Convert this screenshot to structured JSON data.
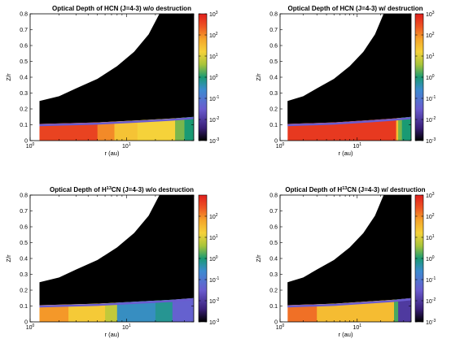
{
  "chart_data": [
    {
      "type": "heatmap",
      "title": "Optical Depth of HCN (J=4-3) w/o destruction",
      "xlabel": "r (au)",
      "ylabel": "Z/r",
      "xscale": "log",
      "xlim": [
        1,
        50
      ],
      "ylim": [
        0,
        0.8
      ],
      "yticks": [
        "0",
        "0.1",
        "0.2",
        "0.3",
        "0.4",
        "0.5",
        "0.6",
        "0.7",
        "0.8"
      ],
      "xticks": [
        "10^0",
        "10^1"
      ],
      "colorbar": {
        "scale": "log",
        "range": [
          0.001,
          1000
        ],
        "labels": [
          "10^3",
          "10^2",
          "10^1",
          "10^0",
          "10^-1",
          "10^-2",
          "10^-3"
        ]
      },
      "boundary": {
        "r": [
          1.25,
          2,
          3,
          5,
          8,
          12,
          17,
          22,
          22,
          50
        ],
        "zr": [
          0.25,
          0.28,
          0.33,
          0.39,
          0.47,
          0.56,
          0.67,
          0.8,
          0.8,
          0.8
        ]
      },
      "surface": {
        "r": [
          1.25,
          5,
          15,
          30,
          50
        ],
        "zr": [
          0.105,
          0.115,
          0.13,
          0.14,
          0.15
        ]
      },
      "bands": [
        {
          "r_from": 1.25,
          "r_to": 5,
          "log_tau": 2.6
        },
        {
          "r_from": 5,
          "r_to": 7.5,
          "log_tau": 2.0
        },
        {
          "r_from": 7.5,
          "r_to": 13,
          "log_tau": 1.4
        },
        {
          "r_from": 13,
          "r_to": 32,
          "log_tau": 1.2
        },
        {
          "r_from": 32,
          "r_to": 40,
          "log_tau": 0.4
        },
        {
          "r_from": 40,
          "r_to": 50,
          "log_tau": 0.0
        }
      ]
    },
    {
      "type": "heatmap",
      "title": "Optical Depth of HCN (J=4-3) w/ destruction",
      "xlabel": "r (au)",
      "ylabel": "Z/r",
      "xscale": "log",
      "xlim": [
        1,
        50
      ],
      "ylim": [
        0,
        0.8
      ],
      "yticks": [
        "0",
        "0.1",
        "0.2",
        "0.3",
        "0.4",
        "0.5",
        "0.6",
        "0.7",
        "0.8"
      ],
      "xticks": [
        "10^0",
        "10^1"
      ],
      "colorbar": {
        "scale": "log",
        "range": [
          0.001,
          1000
        ],
        "labels": [
          "10^3",
          "10^2",
          "10^1",
          "10^0",
          "10^-1",
          "10^-2",
          "10^-3"
        ]
      },
      "boundary": {
        "r": [
          1.25,
          2,
          3,
          5,
          8,
          12,
          17,
          22,
          22,
          50
        ],
        "zr": [
          0.25,
          0.28,
          0.33,
          0.39,
          0.47,
          0.56,
          0.67,
          0.8,
          0.8,
          0.8
        ]
      },
      "surface": {
        "r": [
          1.25,
          5,
          15,
          30,
          50
        ],
        "zr": [
          0.105,
          0.115,
          0.13,
          0.14,
          0.15
        ]
      },
      "bands": [
        {
          "r_from": 1.25,
          "r_to": 32,
          "log_tau": 2.7
        },
        {
          "r_from": 32,
          "r_to": 34,
          "log_tau": 1.5
        },
        {
          "r_from": 34,
          "r_to": 38,
          "log_tau": 0.4
        },
        {
          "r_from": 38,
          "r_to": 50,
          "log_tau": 0.0
        }
      ]
    },
    {
      "type": "heatmap",
      "title": "Optical Depth of H13CN (J=4-3) w/o destruction",
      "title_parts": {
        "before": "Optical Depth of H",
        "sup": "13",
        "after": "CN (J=4-3) w/o destruction"
      },
      "xlabel": "r (au)",
      "ylabel": "Z/r",
      "xscale": "log",
      "xlim": [
        1,
        50
      ],
      "ylim": [
        0,
        0.8
      ],
      "yticks": [
        "0",
        "0.1",
        "0.2",
        "0.3",
        "0.4",
        "0.5",
        "0.6",
        "0.7",
        "0.8"
      ],
      "xticks": [
        "10^0",
        "10^1"
      ],
      "colorbar": {
        "scale": "log",
        "range": [
          0.001,
          1000
        ],
        "labels": [
          "10^2",
          "10^1",
          "10^0",
          "10^-1",
          "10^-2",
          "10^-3"
        ]
      },
      "boundary": {
        "r": [
          1.25,
          2,
          3,
          5,
          8,
          12,
          17,
          22,
          22,
          50
        ],
        "zr": [
          0.25,
          0.28,
          0.33,
          0.39,
          0.47,
          0.56,
          0.67,
          0.8,
          0.8,
          0.8
        ]
      },
      "surface": {
        "r": [
          1.25,
          5,
          15,
          30,
          50
        ],
        "zr": [
          0.105,
          0.115,
          0.13,
          0.14,
          0.15
        ]
      },
      "bands": [
        {
          "r_from": 1.25,
          "r_to": 2.5,
          "log_tau": 1.9
        },
        {
          "r_from": 2.5,
          "r_to": 6,
          "log_tau": 1.3
        },
        {
          "r_from": 6,
          "r_to": 8,
          "log_tau": 0.8
        },
        {
          "r_from": 8,
          "r_to": 20,
          "log_tau": -0.5
        },
        {
          "r_from": 20,
          "r_to": 30,
          "log_tau": -0.2
        },
        {
          "r_from": 30,
          "r_to": 50,
          "log_tau": -1.4
        }
      ]
    },
    {
      "type": "heatmap",
      "title": "Optical Depth of H13CN (J=4-3) w/ destruction",
      "title_parts": {
        "before": "Optical Depth of H",
        "sup": "13",
        "after": "CN (J=4-3) w/ destruction"
      },
      "xlabel": "r (au)",
      "ylabel": "Z/r",
      "xscale": "log",
      "xlim": [
        1,
        50
      ],
      "ylim": [
        0,
        0.8
      ],
      "yticks": [
        "0",
        "0.1",
        "0.2",
        "0.3",
        "0.4",
        "0.5",
        "0.6",
        "0.7",
        "0.8"
      ],
      "xticks": [
        "10^0",
        "10^1"
      ],
      "colorbar": {
        "scale": "log",
        "range": [
          0.001,
          1000
        ],
        "labels": [
          "10^3",
          "10^2",
          "10^1",
          "10^0",
          "10^-1",
          "10^-2",
          "10^-3"
        ]
      },
      "boundary": {
        "r": [
          1.25,
          2,
          3,
          5,
          8,
          12,
          17,
          22,
          22,
          50
        ],
        "zr": [
          0.25,
          0.28,
          0.33,
          0.39,
          0.47,
          0.56,
          0.67,
          0.8,
          0.8,
          0.8
        ]
      },
      "surface": {
        "r": [
          1.25,
          5,
          15,
          30,
          50
        ],
        "zr": [
          0.105,
          0.115,
          0.13,
          0.14,
          0.15
        ]
      },
      "bands": [
        {
          "r_from": 1.25,
          "r_to": 3,
          "log_tau": 2.2
        },
        {
          "r_from": 3,
          "r_to": 30,
          "log_tau": 1.5
        },
        {
          "r_from": 30,
          "r_to": 34,
          "log_tau": 0.2
        },
        {
          "r_from": 34,
          "r_to": 50,
          "log_tau": -2.0
        }
      ]
    }
  ]
}
